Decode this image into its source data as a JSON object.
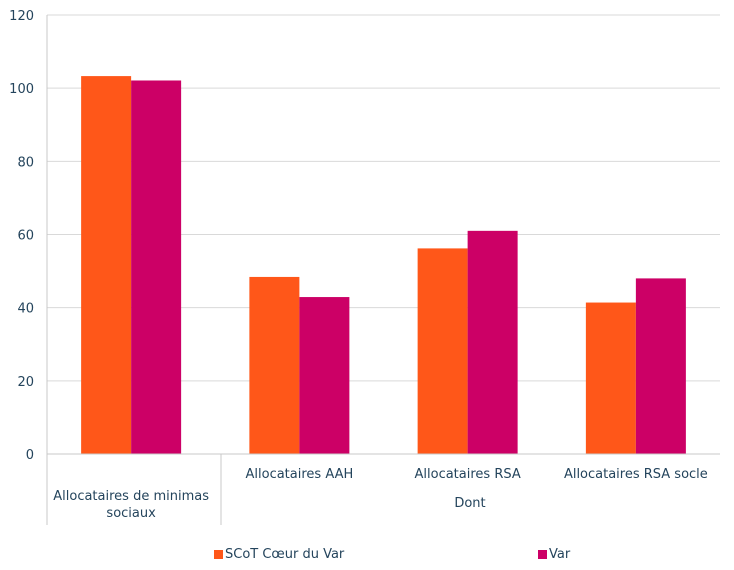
{
  "chart_data": {
    "type": "bar",
    "categories": [
      "Allocataires de minimas sociaux",
      "Allocataires AAH",
      "Allocataires RSA",
      "Allocataires RSA socle"
    ],
    "group_labels": [
      {
        "label": "Allocataires de minimas sociaux",
        "lines": [
          "Allocataires de minimas",
          "sociaux"
        ]
      },
      {
        "label": "Dont"
      }
    ],
    "series": [
      {
        "name": "SCoT Cœur du Var",
        "color": "#FF5719",
        "values": [
          103.3,
          48.4,
          56.2,
          41.4
        ]
      },
      {
        "name": "Var",
        "color": "#CC0066",
        "values": [
          102.1,
          42.9,
          61.0,
          48.0
        ]
      }
    ],
    "yticks": [
      "0",
      "20",
      "40",
      "60",
      "80",
      "100",
      "120"
    ],
    "ylim": [
      0,
      120
    ],
    "title": "",
    "xlabel": "",
    "ylabel": "",
    "grid": true,
    "legend_position": "bottom"
  }
}
